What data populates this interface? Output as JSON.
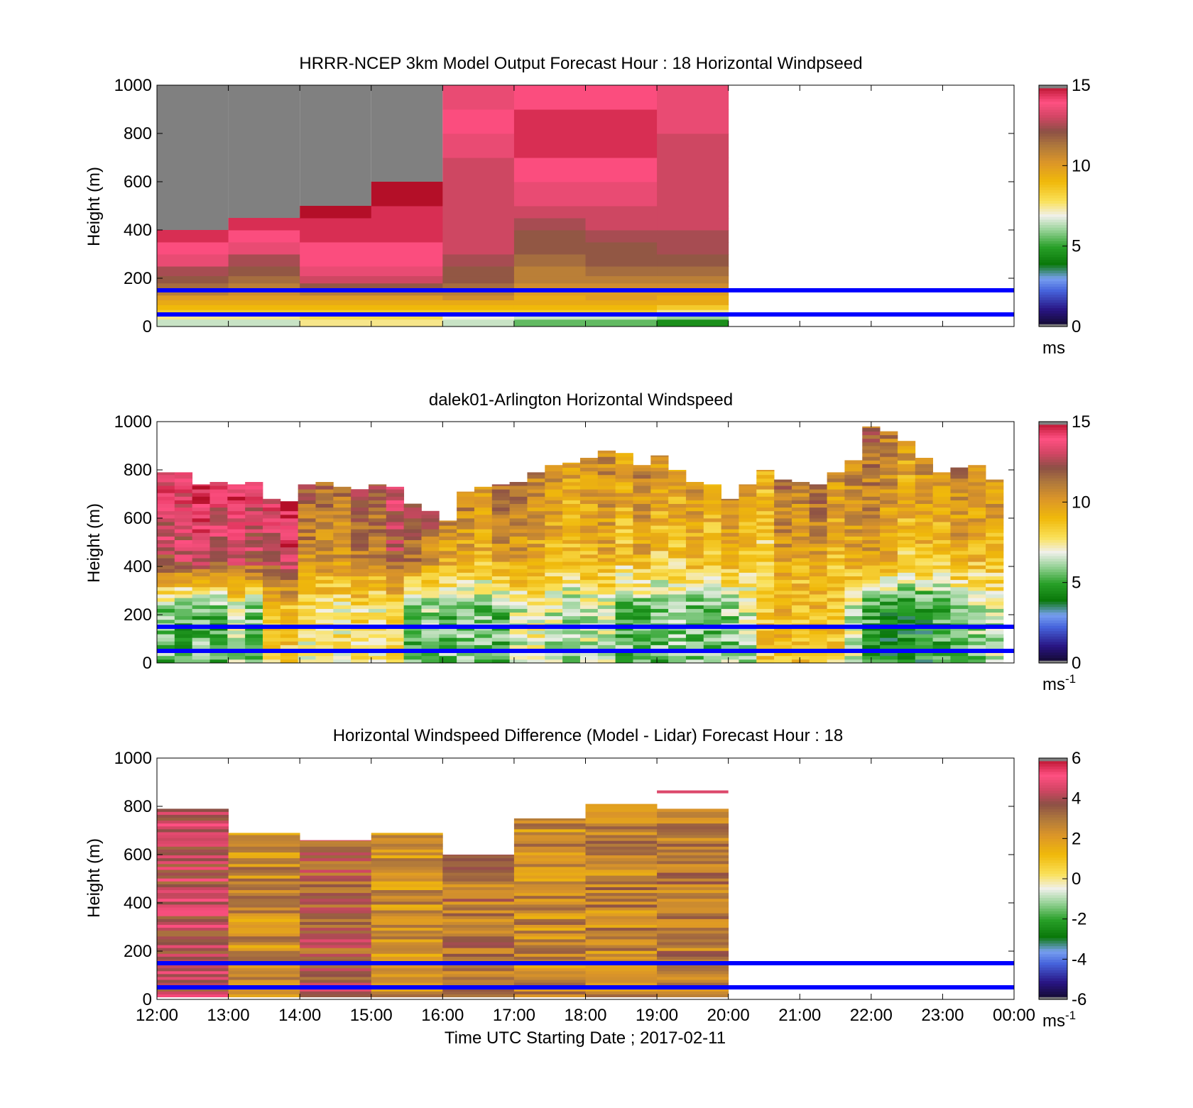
{
  "figure": {
    "x_tick_labels": [
      "12:00",
      "13:00",
      "14:00",
      "15:00",
      "16:00",
      "17:00",
      "18:00",
      "19:00",
      "20:00",
      "21:00",
      "22:00",
      "23:00",
      "00:00"
    ],
    "x_axis_label": "Time UTC  Starting Date ; 2017-02-11",
    "line_color": "#0000ff"
  },
  "chart_data": [
    {
      "type": "heatmap",
      "title": "HRRR-NCEP 3km Model Output   Forecast Hour : 18 Horizontal Windpseed",
      "ylabel": "Height (m)",
      "ylim": [
        0,
        1000
      ],
      "yticks": [
        0,
        200,
        400,
        600,
        800,
        1000
      ],
      "x": [
        "12:00",
        "13:00",
        "14:00",
        "15:00",
        "16:00",
        "17:00",
        "18:00",
        "19:00"
      ],
      "xlim_hours": [
        12,
        24
      ],
      "colorbar": {
        "min": 0,
        "max": 15,
        "ticks": [
          0,
          5,
          10,
          15
        ],
        "unit": "ms",
        "unit_sup": ""
      },
      "reference_lines_m": [
        50,
        150
      ],
      "missing_above_m": [
        400,
        450,
        500,
        600,
        null,
        null,
        null,
        null
      ],
      "levels_m": [
        0,
        30,
        50,
        70,
        90,
        110,
        130,
        150,
        180,
        210,
        250,
        300,
        350,
        400,
        450,
        500,
        600,
        700,
        800,
        900,
        1000
      ],
      "values": [
        [
          6.5,
          7.5,
          8.5,
          9.0,
          9.5,
          10.0,
          11.0,
          11.5,
          12.0,
          12.5,
          13.5,
          14.0,
          14.5,
          null,
          null,
          null,
          null,
          null,
          null,
          null
        ],
        [
          6.5,
          7.5,
          8.5,
          9.0,
          9.5,
          10.0,
          10.5,
          11.0,
          11.5,
          12.0,
          12.5,
          13.5,
          14.0,
          14.5,
          null,
          null,
          null,
          null,
          null,
          null
        ],
        [
          7.5,
          8.0,
          8.5,
          9.0,
          9.5,
          10.0,
          11.0,
          12.0,
          13.0,
          13.5,
          14.0,
          14.0,
          14.5,
          14.5,
          15.0,
          null,
          null,
          null,
          null,
          null
        ],
        [
          7.5,
          8.0,
          8.5,
          9.0,
          9.5,
          10.0,
          11.0,
          12.0,
          13.0,
          13.5,
          14.0,
          14.0,
          14.5,
          14.5,
          14.5,
          15.0,
          null,
          null,
          null,
          null
        ],
        [
          6.5,
          7.0,
          8.5,
          9.0,
          9.5,
          10.5,
          11.0,
          11.5,
          12.0,
          12.0,
          12.5,
          13.0,
          13.0,
          13.0,
          13.0,
          13.0,
          13.0,
          13.5,
          14.0,
          13.5
        ],
        [
          5.5,
          6.5,
          8.5,
          9.0,
          9.5,
          9.5,
          10.0,
          10.5,
          11.0,
          11.0,
          11.5,
          12.0,
          12.0,
          12.5,
          13.0,
          13.5,
          14.0,
          14.5,
          14.5,
          14.0
        ],
        [
          5.5,
          6.5,
          8.5,
          9.0,
          9.5,
          10.0,
          10.0,
          10.5,
          11.0,
          11.5,
          12.0,
          12.0,
          12.5,
          13.0,
          13.0,
          13.5,
          14.0,
          14.5,
          14.5,
          14.0
        ],
        [
          4.5,
          6.0,
          7.5,
          8.5,
          9.5,
          9.5,
          10.0,
          10.5,
          11.0,
          11.5,
          12.0,
          12.5,
          12.5,
          13.0,
          13.0,
          13.0,
          13.0,
          13.0,
          13.5,
          13.5
        ]
      ]
    },
    {
      "type": "heatmap",
      "title": "dalek01-Arlington  Horizontal Windspeed",
      "ylabel": "Height (m)",
      "ylim": [
        0,
        1000
      ],
      "yticks": [
        0,
        200,
        400,
        600,
        800,
        1000
      ],
      "xlim_hours": [
        12,
        24
      ],
      "columns_hours_span": [
        12.0,
        23.85
      ],
      "columns_count": 48,
      "colorbar": {
        "min": 0,
        "max": 15,
        "ticks": [
          0,
          5,
          10,
          15
        ],
        "unit": "ms",
        "unit_sup": "-1"
      },
      "reference_lines_m": [
        50,
        150
      ],
      "column_top_m": [
        790,
        790,
        740,
        750,
        740,
        750,
        680,
        670,
        740,
        750,
        730,
        720,
        740,
        730,
        660,
        630,
        590,
        710,
        730,
        740,
        750,
        790,
        820,
        830,
        850,
        880,
        870,
        820,
        860,
        800,
        750,
        740,
        680,
        740,
        800,
        760,
        750,
        740,
        790,
        840,
        980,
        960,
        920,
        850,
        790,
        810,
        820,
        760
      ],
      "column_mean_upper": [
        13.5,
        13.5,
        14.0,
        13.5,
        14.0,
        13.5,
        13.5,
        14.5,
        11.5,
        11.0,
        11.0,
        12.0,
        11.5,
        13.0,
        12.0,
        11.5,
        10.5,
        10.5,
        10.0,
        11.0,
        11.0,
        10.5,
        10.0,
        9.5,
        10.0,
        10.5,
        9.5,
        10.5,
        9.5,
        9.5,
        10.0,
        9.5,
        10.0,
        9.5,
        9.0,
        11.0,
        10.5,
        11.0,
        10.0,
        10.5,
        11.0,
        10.5,
        9.5,
        10.0,
        9.5,
        10.5,
        10.0,
        10.0
      ],
      "column_mean_lower": [
        5.5,
        5.0,
        5.5,
        5.0,
        6.5,
        5.5,
        8.5,
        8.5,
        7.5,
        8.0,
        7.5,
        8.0,
        7.5,
        8.5,
        5.5,
        6.0,
        5.5,
        6.0,
        5.5,
        5.5,
        6.5,
        7.0,
        6.5,
        6.0,
        6.5,
        6.5,
        5.5,
        5.5,
        5.5,
        6.0,
        5.5,
        5.5,
        6.0,
        6.5,
        8.5,
        9.0,
        8.5,
        9.0,
        8.5,
        6.5,
        5.0,
        4.5,
        4.5,
        4.5,
        5.0,
        5.5,
        6.0,
        6.5
      ]
    },
    {
      "type": "heatmap",
      "title": "Horizontal Windspeed Difference (Model - Lidar) Forecast Hour : 18",
      "ylabel": "Height (m)",
      "ylim": [
        0,
        1000
      ],
      "yticks": [
        0,
        200,
        400,
        600,
        800,
        1000
      ],
      "x": [
        "12:00",
        "13:00",
        "14:00",
        "15:00",
        "16:00",
        "17:00",
        "18:00",
        "19:00"
      ],
      "xlim_hours": [
        12,
        24
      ],
      "colorbar": {
        "min": -6,
        "max": 6,
        "ticks": [
          -6,
          -4,
          -2,
          0,
          2,
          4,
          6
        ],
        "unit": "ms",
        "unit_sup": "-1"
      },
      "reference_lines_m": [
        50,
        150
      ],
      "column_top_m": [
        790,
        690,
        660,
        690,
        600,
        750,
        810,
        790
      ],
      "mean_diff": [
        4.2,
        2.4,
        3.6,
        2.3,
        3.0,
        2.4,
        2.6,
        2.9
      ],
      "extra_segment": {
        "hour_index": 7,
        "height_m": 860,
        "value": 4.6
      }
    }
  ]
}
